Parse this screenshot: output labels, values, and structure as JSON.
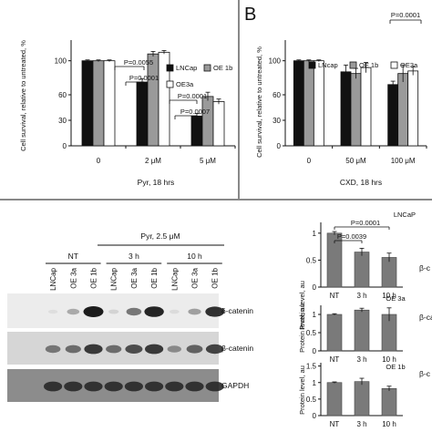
{
  "panel_a": {
    "y_label": "Cell survival, relative to untreated, %",
    "x_caption": "Pyr, 18 hrs"
  },
  "panel_b": {
    "letter": "B",
    "y_label": "Cell survival, relative to untreated, %",
    "x_caption": "CXD, 18 hrs"
  },
  "panel_c": {
    "treatment": "Pyr, 2.5 μM",
    "groups": [
      "NT",
      "3 h",
      "10 h"
    ],
    "lanes": [
      "LNCap",
      "OE 3a",
      "OE 1b",
      "LNCap",
      "OE 3a",
      "OE 1b",
      "LNCap",
      "OE 3a",
      "OE 1b"
    ],
    "blots": [
      {
        "label": "δ-catenin",
        "intensities": [
          0.04,
          0.3,
          1.0,
          0.1,
          0.55,
          0.95,
          0.06,
          0.35,
          0.9
        ]
      },
      {
        "label": "β-catenin",
        "intensities": [
          0.55,
          0.6,
          0.85,
          0.6,
          0.75,
          0.85,
          0.45,
          0.65,
          0.8
        ]
      },
      {
        "label": "GAPDH",
        "intensities": [
          0.85,
          0.85,
          0.85,
          0.85,
          0.85,
          0.85,
          0.85,
          0.85,
          0.85
        ]
      }
    ],
    "bg_colors": [
      "#ececec",
      "#d6d6d6",
      "#8c8c8c"
    ]
  },
  "colors": {
    "black": "#111111",
    "gray": "#9a9a9a",
    "white": "#ffffff",
    "quant": "#7a7a7a"
  },
  "chart_data": [
    {
      "type": "bar",
      "title": "",
      "ylabel": "Cell survival, relative to untreated, %",
      "xlabel": "Pyr, 18 hrs",
      "categories": [
        "0",
        "2 μM",
        "5 μM"
      ],
      "ylim": [
        0,
        120
      ],
      "yticks": [
        0,
        30,
        60,
        100
      ],
      "legend_position": "right",
      "series": [
        {
          "name": "LNCap",
          "color": "#111111",
          "values": [
            100,
            75,
            35
          ],
          "errors": [
            1,
            4,
            3
          ]
        },
        {
          "name": "OE 1b",
          "color": "#9a9a9a",
          "values": [
            100,
            108,
            58
          ],
          "errors": [
            1,
            3,
            5
          ]
        },
        {
          "name": "OE3a",
          "color": "#ffffff",
          "values": [
            100,
            110,
            52
          ],
          "errors": [
            1,
            2,
            3
          ]
        }
      ],
      "annotations": [
        "P=0.0055",
        "P=0.0001",
        "P=0.0001",
        "P=0.0007"
      ]
    },
    {
      "type": "bar",
      "title": "",
      "ylabel": "Cell survival, relative to untreated, %",
      "xlabel": "CXD, 18 hrs",
      "categories": [
        "0",
        "50 μM",
        "100 μM"
      ],
      "ylim": [
        0,
        120
      ],
      "yticks": [
        0,
        30,
        60,
        100
      ],
      "legend_position": "top",
      "series": [
        {
          "name": "LNcap",
          "color": "#111111",
          "values": [
            100,
            87,
            72
          ],
          "errors": [
            1,
            8,
            4
          ]
        },
        {
          "name": "OE 1b",
          "color": "#9a9a9a",
          "values": [
            100,
            85,
            85
          ],
          "errors": [
            1,
            6,
            10
          ]
        },
        {
          "name": "OE3a",
          "color": "#ffffff",
          "values": [
            100,
            92,
            88
          ],
          "errors": [
            1,
            6,
            5
          ]
        }
      ],
      "annotations": [
        "P=0.0001"
      ]
    },
    {
      "type": "bar",
      "title": "LNCaP",
      "ylabel": "Protein level, au",
      "categories": [
        "NT",
        "3 h",
        "10 h"
      ],
      "ylim": [
        0,
        1.2
      ],
      "yticks": [
        0,
        0.5,
        1
      ],
      "side_label": "β-c",
      "series": [
        {
          "values": [
            1.0,
            0.65,
            0.55
          ],
          "errors": [
            0.03,
            0.07,
            0.08
          ]
        }
      ],
      "annotations": [
        "P=0.0001",
        "P=0.0039"
      ]
    },
    {
      "type": "bar",
      "title": "OE 3a",
      "ylabel": "Protein level, au",
      "categories": [
        "NT",
        "3 h",
        "10 h"
      ],
      "ylim": [
        0,
        1.25
      ],
      "yticks": [
        0,
        0.5,
        1
      ],
      "side_label": "β-ca",
      "series": [
        {
          "values": [
            1.0,
            1.12,
            1.0
          ],
          "errors": [
            0.02,
            0.05,
            0.18
          ]
        }
      ],
      "annotations": []
    },
    {
      "type": "bar",
      "title": "OE 1b",
      "ylabel": "Protein level, au",
      "categories": [
        "NT",
        "3 h",
        "10 h"
      ],
      "ylim": [
        0,
        1.6
      ],
      "yticks": [
        0,
        0.5,
        1,
        1.5
      ],
      "side_label": "β-c",
      "series": [
        {
          "values": [
            1.0,
            1.03,
            0.82
          ],
          "errors": [
            0.02,
            0.1,
            0.07
          ]
        }
      ],
      "annotations": []
    }
  ]
}
